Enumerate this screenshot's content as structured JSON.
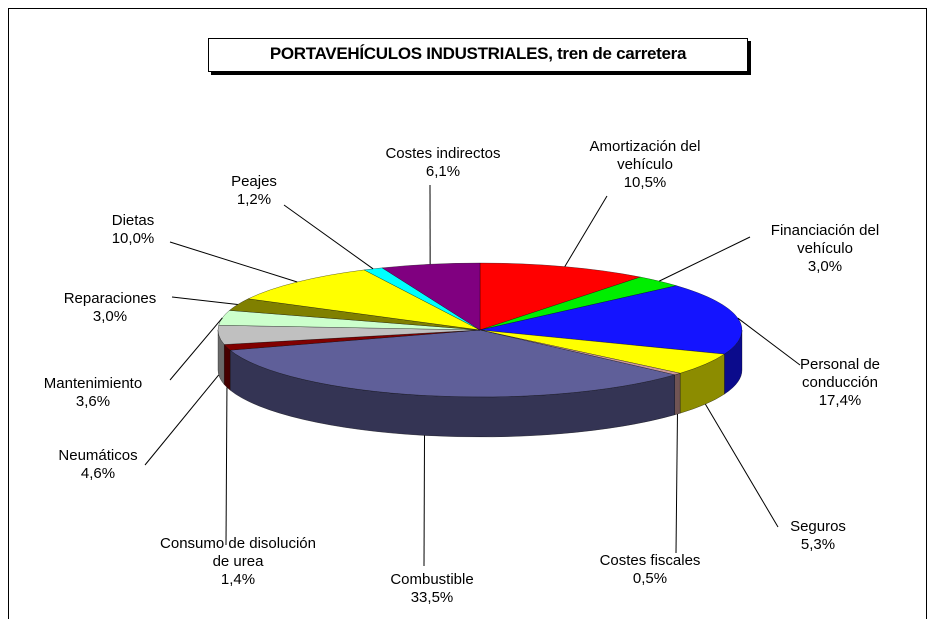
{
  "chart_data": {
    "type": "pie3d",
    "title": "PORTAVEHÍCULOS INDUSTRIALES, tren de carretera",
    "categories": [
      "Amortización del vehículo",
      "Financiación del vehículo",
      "Personal de conducción",
      "Seguros",
      "Costes fiscales",
      "Combustible",
      "Consumo de disolución de urea",
      "Neumáticos",
      "Mantenimiento",
      "Reparaciones",
      "Dietas",
      "Peajes",
      "Costes indirectos"
    ],
    "values": [
      10.5,
      3.0,
      17.4,
      5.3,
      0.5,
      33.5,
      1.4,
      4.6,
      3.6,
      3.0,
      10.0,
      1.2,
      6.1
    ],
    "value_labels": [
      "10,5%",
      "3,0%",
      "17,4%",
      "5,3%",
      "0,5%",
      "33,5%",
      "1,4%",
      "4,6%",
      "3,6%",
      "3,0%",
      "10,0%",
      "1,2%",
      "6,1%"
    ],
    "colors": [
      "#ff0000",
      "#00ee00",
      "#1414ff",
      "#ffff00",
      "#cc9999",
      "#5f5f99",
      "#800000",
      "#c0c0c0",
      "#ccffcc",
      "#808000",
      "#ffff00",
      "#00ffff",
      "#800080"
    ]
  }
}
